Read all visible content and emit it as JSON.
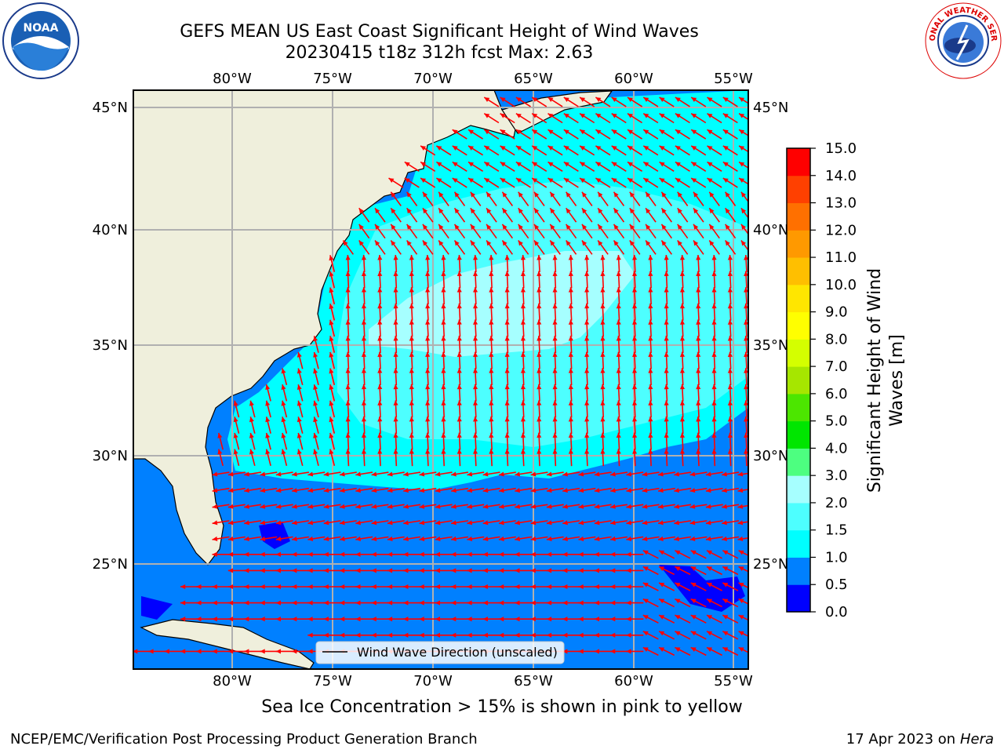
{
  "title": {
    "line1": "GEFS MEAN US East Coast Significant Height of Wind Waves",
    "line2": "20230415 t18z 312h fcst   Max: 2.63"
  },
  "axes": {
    "lon_ticks": [
      "80°W",
      "75°W",
      "70°W",
      "65°W",
      "60°W",
      "55°W"
    ],
    "lat_ticks": [
      "45°N",
      "40°N",
      "35°N",
      "30°N",
      "25°N"
    ]
  },
  "legend": {
    "label": "Wind Wave Direction (unscaled)"
  },
  "colorbar": {
    "title_line1": "Significant Height of Wind",
    "title_line2": "Waves [m]",
    "ticks": [
      "0.0",
      "0.5",
      "1.0",
      "1.5",
      "2.0",
      "3.0",
      "4.0",
      "5.0",
      "6.0",
      "7.0",
      "8.0",
      "9.0",
      "10.0",
      "11.0",
      "12.0",
      "13.0",
      "14.0",
      "15.0"
    ],
    "colors": [
      "#0000ff",
      "#0080ff",
      "#00ffff",
      "#4dffff",
      "#a6ffff",
      "#4dff80",
      "#00e600",
      "#4ce600",
      "#a6e600",
      "#d4ff00",
      "#ffff00",
      "#ffe600",
      "#ffbf00",
      "#ff9900",
      "#ff7000",
      "#ff4000",
      "#ff0000"
    ]
  },
  "colors": {
    "land": "#efefdc",
    "arrow": "#ff0000",
    "grid": "#b0b0b0"
  },
  "notes": {
    "sea_ice": "Sea Ice Concentration > 15% is shown in pink to yellow"
  },
  "footer": {
    "left": "NCEP/EMC/Verification Post Processing Product Generation Branch",
    "right_date": "17 Apr 2023 on ",
    "right_host": "Hera"
  },
  "logos": {
    "left": "noaa-logo",
    "right": "nws-logo"
  }
}
